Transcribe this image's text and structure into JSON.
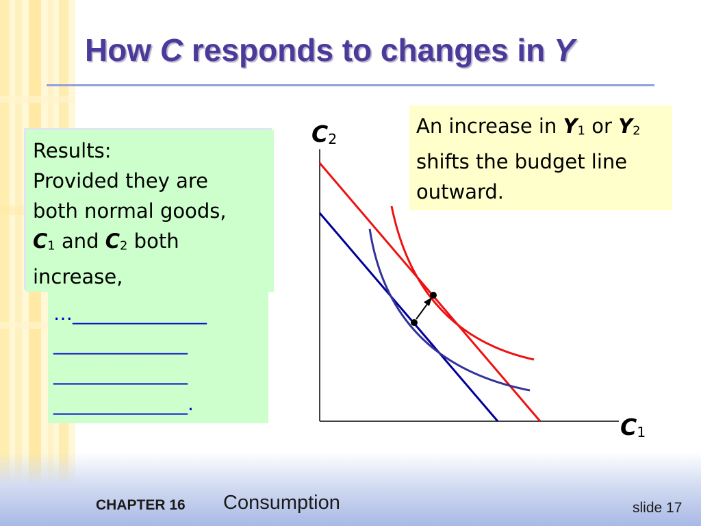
{
  "slide": {
    "title": {
      "prefix": "How ",
      "var1": "C",
      "middle": " responds to changes in ",
      "var2": "Y"
    },
    "results_box": {
      "line1": "Results:",
      "line2": "Provided they are",
      "line3": "both normal goods,",
      "c1_var": "C",
      "c1_sub": "1",
      "and_word": " and ",
      "c2_var": "C",
      "c2_sub": "2",
      "both_word": " both",
      "line5": "increase,"
    },
    "blank_box": {
      "lines": [
        "…______________",
        "______________",
        "______________",
        "______________."
      ]
    },
    "note_box": {
      "text1": "An increase in ",
      "y1_var": "Y",
      "y1_sub": "1",
      "or_word": " or ",
      "y2_var": "Y",
      "y2_sub": "2",
      "line2": "shifts the budget line",
      "line3": "outward."
    },
    "diagram": {
      "y_axis": {
        "var": "C",
        "sub": "2"
      },
      "x_axis": {
        "var": "C",
        "sub": "1"
      },
      "colors": {
        "initial": "#000099",
        "new": "#ee1111",
        "indiff_initial": "#333399",
        "axis": "#000000"
      }
    },
    "footer": {
      "chapter": "CHAPTER 16",
      "chapter_title": "Consumption",
      "slide_number": "slide 17"
    }
  }
}
